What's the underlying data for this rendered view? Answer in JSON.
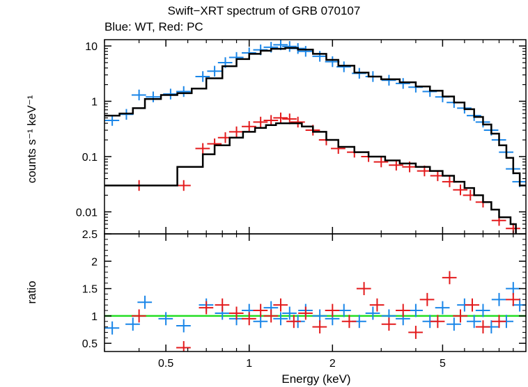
{
  "chart": {
    "title": "Swift−XRT spectrum of GRB 070107",
    "subtitle": "Blue: WT, Red: PC",
    "xlabel": "Energy (keV)",
    "ylabel_top": "counts s⁻¹ keV⁻¹",
    "ylabel_bottom": "ratio"
  },
  "chart_data": [
    {
      "type": "scatter",
      "panel": "spectrum",
      "xscale": "log",
      "yscale": "log",
      "xlim": [
        0.3,
        10
      ],
      "ylim": [
        0.004,
        13
      ],
      "x_ticks": [
        "0.5",
        "1",
        "2",
        "5"
      ],
      "y_ticks": [
        "10",
        "1",
        "0.1",
        "0.01"
      ],
      "series": [
        {
          "colour": "#1a86e8",
          "points": [
            [
              0.32,
              0.45
            ],
            [
              0.36,
              0.58
            ],
            [
              0.4,
              1.3
            ],
            [
              0.45,
              1.2
            ],
            [
              0.52,
              1.35
            ],
            [
              0.58,
              1.5
            ],
            [
              0.68,
              2.8
            ],
            [
              0.75,
              3.5
            ],
            [
              0.82,
              5.0
            ],
            [
              0.9,
              6.2
            ],
            [
              1.0,
              7.5
            ],
            [
              1.1,
              8.5
            ],
            [
              1.2,
              9.5
            ],
            [
              1.3,
              10.5
            ],
            [
              1.4,
              9.8
            ],
            [
              1.5,
              9.0
            ],
            [
              1.6,
              8.0
            ],
            [
              1.8,
              6.5
            ],
            [
              2.0,
              5.2
            ],
            [
              2.2,
              4.2
            ],
            [
              2.5,
              3.2
            ],
            [
              2.8,
              2.8
            ],
            [
              3.2,
              2.4
            ],
            [
              3.6,
              2.1
            ],
            [
              4.0,
              1.8
            ],
            [
              4.5,
              1.5
            ],
            [
              5.0,
              1.2
            ],
            [
              5.5,
              0.95
            ],
            [
              6.0,
              0.75
            ],
            [
              6.5,
              0.55
            ],
            [
              7.0,
              0.42
            ],
            [
              7.5,
              0.3
            ],
            [
              8.0,
              0.2
            ],
            [
              8.5,
              0.12
            ],
            [
              9.0,
              0.06
            ],
            [
              9.5,
              0.035
            ]
          ]
        },
        {
          "colour": "#e31a1c",
          "points": [
            [
              0.4,
              0.03
            ],
            [
              0.58,
              0.03
            ],
            [
              0.68,
              0.14
            ],
            [
              0.75,
              0.17
            ],
            [
              0.82,
              0.22
            ],
            [
              0.9,
              0.28
            ],
            [
              1.0,
              0.35
            ],
            [
              1.1,
              0.42
            ],
            [
              1.2,
              0.45
            ],
            [
              1.3,
              0.5
            ],
            [
              1.4,
              0.48
            ],
            [
              1.5,
              0.42
            ],
            [
              1.7,
              0.3
            ],
            [
              1.9,
              0.2
            ],
            [
              2.1,
              0.14
            ],
            [
              2.4,
              0.12
            ],
            [
              2.7,
              0.1
            ],
            [
              3.0,
              0.08
            ],
            [
              3.4,
              0.07
            ],
            [
              3.8,
              0.065
            ],
            [
              4.3,
              0.055
            ],
            [
              4.8,
              0.045
            ],
            [
              5.3,
              0.035
            ],
            [
              5.8,
              0.025
            ],
            [
              6.3,
              0.02
            ],
            [
              7.0,
              0.015
            ],
            [
              8.0,
              0.007
            ],
            [
              9.0,
              0.005
            ]
          ]
        }
      ],
      "models": [
        {
          "colour": "#000000",
          "steps": [
            [
              0.3,
              0.55
            ],
            [
              0.34,
              0.6
            ],
            [
              0.38,
              0.75
            ],
            [
              0.42,
              1.1
            ],
            [
              0.48,
              1.3
            ],
            [
              0.55,
              1.4
            ],
            [
              0.62,
              1.7
            ],
            [
              0.7,
              2.6
            ],
            [
              0.8,
              4.3
            ],
            [
              0.9,
              5.8
            ],
            [
              1.0,
              7.2
            ],
            [
              1.1,
              8.2
            ],
            [
              1.2,
              8.9
            ],
            [
              1.35,
              9.2
            ],
            [
              1.5,
              8.6
            ],
            [
              1.7,
              7.2
            ],
            [
              1.9,
              5.6
            ],
            [
              2.1,
              4.4
            ],
            [
              2.4,
              3.3
            ],
            [
              2.7,
              2.8
            ],
            [
              3.0,
              2.5
            ],
            [
              3.5,
              2.2
            ],
            [
              4.0,
              1.85
            ],
            [
              4.5,
              1.55
            ],
            [
              5.0,
              1.22
            ],
            [
              5.5,
              0.95
            ],
            [
              6.0,
              0.72
            ],
            [
              6.5,
              0.52
            ],
            [
              7.0,
              0.38
            ],
            [
              7.5,
              0.26
            ],
            [
              8.0,
              0.16
            ],
            [
              8.5,
              0.095
            ],
            [
              9.0,
              0.05
            ],
            [
              9.5,
              0.03
            ],
            [
              10.0,
              0.03
            ]
          ]
        },
        {
          "colour": "#000000",
          "steps": [
            [
              0.3,
              0.03
            ],
            [
              0.55,
              0.03
            ],
            [
              0.55,
              0.065
            ],
            [
              0.68,
              0.11
            ],
            [
              0.75,
              0.16
            ],
            [
              0.85,
              0.22
            ],
            [
              0.95,
              0.28
            ],
            [
              1.05,
              0.33
            ],
            [
              1.15,
              0.37
            ],
            [
              1.25,
              0.4
            ],
            [
              1.4,
              0.4
            ],
            [
              1.55,
              0.35
            ],
            [
              1.7,
              0.28
            ],
            [
              1.9,
              0.2
            ],
            [
              2.1,
              0.15
            ],
            [
              2.4,
              0.12
            ],
            [
              2.7,
              0.1
            ],
            [
              3.1,
              0.085
            ],
            [
              3.5,
              0.075
            ],
            [
              4.0,
              0.065
            ],
            [
              4.5,
              0.055
            ],
            [
              5.0,
              0.045
            ],
            [
              5.5,
              0.035
            ],
            [
              6.0,
              0.027
            ],
            [
              6.5,
              0.02
            ],
            [
              7.0,
              0.015
            ],
            [
              7.5,
              0.011
            ],
            [
              8.0,
              0.008
            ],
            [
              8.8,
              0.006
            ],
            [
              9.2,
              0.004
            ]
          ]
        }
      ]
    },
    {
      "type": "scatter",
      "panel": "ratio",
      "xscale": "log",
      "yscale": "linear",
      "xlim": [
        0.3,
        10
      ],
      "ylim": [
        0.35,
        2.5
      ],
      "x_ticks": [
        "0.5",
        "1",
        "2",
        "5"
      ],
      "y_ticks": [
        "2.5",
        "2",
        "1.5",
        "1",
        "0.5"
      ],
      "reference_line": {
        "y": 1,
        "colour": "#22dd22"
      },
      "series": [
        {
          "colour": "#1a86e8",
          "points": [
            [
              0.32,
              0.78
            ],
            [
              0.38,
              0.85
            ],
            [
              0.42,
              1.25
            ],
            [
              0.5,
              0.95
            ],
            [
              0.58,
              0.82
            ],
            [
              0.7,
              1.2
            ],
            [
              0.8,
              1.05
            ],
            [
              0.9,
              0.95
            ],
            [
              1.0,
              1.1
            ],
            [
              1.1,
              0.9
            ],
            [
              1.2,
              1.15
            ],
            [
              1.3,
              0.95
            ],
            [
              1.4,
              1.05
            ],
            [
              1.5,
              0.9
            ],
            [
              1.6,
              1.1
            ],
            [
              1.8,
              1.0
            ],
            [
              2.0,
              0.95
            ],
            [
              2.2,
              1.1
            ],
            [
              2.5,
              0.9
            ],
            [
              2.8,
              1.05
            ],
            [
              3.2,
              1.0
            ],
            [
              3.6,
              0.95
            ],
            [
              4.0,
              1.1
            ],
            [
              4.5,
              0.9
            ],
            [
              5.0,
              1.15
            ],
            [
              5.5,
              0.85
            ],
            [
              6.0,
              1.2
            ],
            [
              6.5,
              0.9
            ],
            [
              7.0,
              1.1
            ],
            [
              7.5,
              0.8
            ],
            [
              8.0,
              1.3
            ],
            [
              8.5,
              0.9
            ],
            [
              9.0,
              1.5
            ],
            [
              9.5,
              1.2
            ]
          ]
        },
        {
          "colour": "#e31a1c",
          "points": [
            [
              0.4,
              1.0
            ],
            [
              0.58,
              0.42
            ],
            [
              0.7,
              1.15
            ],
            [
              0.8,
              1.2
            ],
            [
              0.9,
              1.05
            ],
            [
              1.0,
              0.95
            ],
            [
              1.1,
              1.1
            ],
            [
              1.2,
              1.0
            ],
            [
              1.3,
              1.2
            ],
            [
              1.45,
              0.9
            ],
            [
              1.6,
              1.05
            ],
            [
              1.8,
              0.8
            ],
            [
              2.0,
              1.1
            ],
            [
              2.3,
              0.9
            ],
            [
              2.6,
              1.5
            ],
            [
              2.9,
              1.2
            ],
            [
              3.2,
              0.85
            ],
            [
              3.6,
              1.1
            ],
            [
              4.0,
              0.7
            ],
            [
              4.4,
              1.3
            ],
            [
              4.8,
              0.9
            ],
            [
              5.3,
              1.7
            ],
            [
              5.8,
              1.0
            ],
            [
              6.4,
              1.2
            ],
            [
              7.0,
              0.8
            ],
            [
              8.0,
              0.9
            ],
            [
              9.0,
              1.3
            ]
          ]
        }
      ]
    }
  ]
}
